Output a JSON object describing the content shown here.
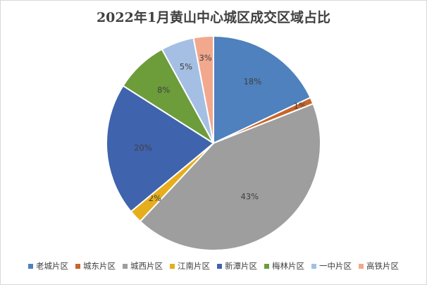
{
  "chart_data": {
    "type": "pie",
    "title": "2022年1月黄山中心城区成交区域占比",
    "categories": [
      "老城片区",
      "城东片区",
      "城西片区",
      "江南片区",
      "新潭片区",
      "梅林片区",
      "一中片区",
      "高铁片区"
    ],
    "values": [
      18,
      1,
      43,
      2,
      20,
      8,
      5,
      3
    ],
    "labels": [
      "18%",
      "1%",
      "43%",
      "2%",
      "20%",
      "8%",
      "5%",
      "3%"
    ],
    "colors": [
      "#4e81bd",
      "#c8662a",
      "#9e9e9e",
      "#e6ad1c",
      "#3f63ad",
      "#6d9c3b",
      "#a4bfe3",
      "#f2a88c"
    ],
    "legend_position": "bottom"
  }
}
